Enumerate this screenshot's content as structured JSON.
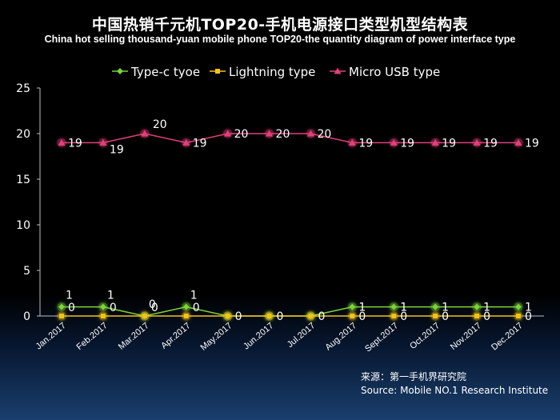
{
  "title": "中国热销千元机TOP20-手机电源接口类型机型结构表",
  "subtitle": "China hot selling thousand-yuan mobile phone TOP20-the quantity diagram of power interface type",
  "source": {
    "line1": "来源：第一手机界研究院",
    "line2": "Source: Mobile NO.1 Research Institute"
  },
  "colors": {
    "typec": "#7dd33a",
    "lightning": "#f2c21d",
    "microusb": "#e0407a",
    "axis": "#bfbfbf",
    "text": "#ffffff"
  },
  "chart_data": {
    "type": "line",
    "title": "中国热销千元机TOP20-手机电源接口类型机型结构表",
    "categories": [
      "Jan.2017",
      "Feb.2017",
      "Mar.2017",
      "Apr.2017",
      "May.2017",
      "Jun.2017",
      "Jul.2017",
      "Aug.2017",
      "Sept.2017",
      "Oct.2017",
      "Nov.2017",
      "Dec.2017"
    ],
    "ylim": [
      0,
      25
    ],
    "yticks": [
      0,
      5,
      10,
      15,
      20,
      25
    ],
    "grid": false,
    "legend_position": "top",
    "series": [
      {
        "name": "Type-c tyoe",
        "values": [
          1,
          1,
          0,
          1,
          0,
          0,
          0,
          1,
          1,
          1,
          1,
          1
        ],
        "marker": "diamond"
      },
      {
        "name": "Lightning type",
        "values": [
          0,
          0,
          0,
          0,
          0,
          0,
          0,
          0,
          0,
          0,
          0,
          0
        ],
        "marker": "square"
      },
      {
        "name": "Micro USB type",
        "values": [
          19,
          19,
          20,
          19,
          20,
          20,
          20,
          19,
          19,
          19,
          19,
          19
        ],
        "marker": "triangle"
      }
    ]
  }
}
